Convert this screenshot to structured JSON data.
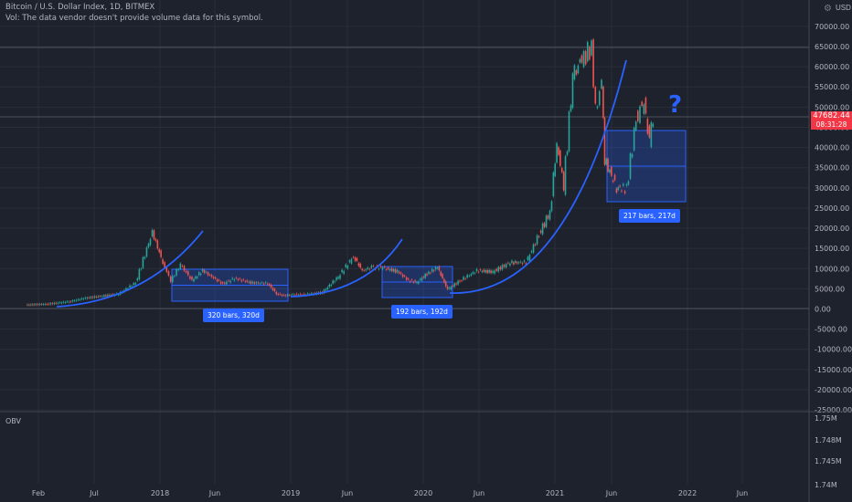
{
  "header": {
    "title": "Bitcoin / U.S. Dollar Index, 1D, BITMEX",
    "volume_note": "Vol: The data vendor doesn't provide volume data for this symbol."
  },
  "currency": "USD",
  "last_price": {
    "value": "47682.44",
    "countdown": "08:31:28",
    "color": "#f23645"
  },
  "annotation": {
    "question_mark": "?"
  },
  "indicator": {
    "name": "OBV"
  },
  "date_ranges": [
    {
      "label": "320 bars, 320d"
    },
    {
      "label": "192 bars, 192d"
    },
    {
      "label": "217 bars, 217d"
    }
  ],
  "colors": {
    "background": "#1e222d",
    "up": "#26a69a",
    "down": "#ef5350",
    "curve": "#2962ff",
    "range_fill": "rgba(41,98,255,0.25)",
    "grid": "#2a2e39",
    "axis_text": "#b2b5be"
  },
  "chart_data": [
    {
      "type": "line",
      "title": "Bitcoin / U.S. Dollar Index, 1D, BITMEX",
      "note": "candlestick chart, approximated by daily close values",
      "x_ticks": [
        "Feb",
        "Jul",
        "2018",
        "Jun",
        "2019",
        "Jun",
        "2020",
        "Jun",
        "2021",
        "Jun",
        "2022",
        "Jun"
      ],
      "y_ticks": [
        "70000.00",
        "65000.00",
        "60000.00",
        "55000.00",
        "50000.00",
        "45000.00",
        "40000.00",
        "35000.00",
        "30000.00",
        "25000.00",
        "20000.00",
        "15000.00",
        "10000.00",
        "5000.00",
        "0.00",
        "-5000.00",
        "-10000.00",
        "-15000.00",
        "-20000.00",
        "-25000.00"
      ],
      "ylim": [
        -25000,
        70000
      ],
      "series": [
        {
          "x": [
            "2017-01-01",
            "2017-03-01",
            "2017-05-01",
            "2017-06-15",
            "2017-08-01",
            "2017-09-15",
            "2017-11-01",
            "2017-12-17",
            "2018-01-15",
            "2018-02-06",
            "2018-03-05",
            "2018-04-06",
            "2018-05-05",
            "2018-06-30",
            "2018-08-01",
            "2018-09-15",
            "2018-11-01",
            "2018-11-25",
            "2018-12-15",
            "2019-01-15",
            "2019-02-15",
            "2019-04-01",
            "2019-05-15",
            "2019-06-26",
            "2019-07-20",
            "2019-08-15",
            "2019-09-15",
            "2019-10-25",
            "2019-11-25",
            "2019-12-18",
            "2020-01-15",
            "2020-02-13",
            "2020-03-12",
            "2020-04-15",
            "2020-06-01",
            "2020-07-15",
            "2020-09-01",
            "2020-10-15",
            "2020-11-20",
            "2020-12-20",
            "2021-01-08",
            "2021-01-27",
            "2021-02-21",
            "2021-03-13",
            "2021-04-14",
            "2021-04-25",
            "2021-05-12",
            "2021-05-20",
            "2021-06-22",
            "2021-07-20",
            "2021-08-15",
            "2021-09-06",
            "2021-09-21",
            "2021-10-01"
          ],
          "y": [
            1000,
            1200,
            1800,
            2700,
            3200,
            3700,
            6500,
            19000,
            11500,
            7000,
            11000,
            7000,
            9500,
            6200,
            7600,
            6500,
            6300,
            3800,
            3300,
            3600,
            3600,
            4100,
            8000,
            13000,
            9500,
            10300,
            10200,
            9300,
            7100,
            6600,
            8700,
            10300,
            4800,
            7000,
            9500,
            9200,
            11500,
            11500,
            18500,
            24000,
            41000,
            30500,
            57500,
            61000,
            64800,
            49000,
            56000,
            37000,
            30000,
            29800,
            47000,
            51500,
            41000,
            47682
          ]
        }
      ]
    },
    {
      "type": "line",
      "title": "OBV",
      "y_ticks": [
        "1.75M",
        "1.748M",
        "1.745M",
        "1.74M"
      ],
      "series": [
        {
          "x": [],
          "y": []
        }
      ]
    }
  ]
}
